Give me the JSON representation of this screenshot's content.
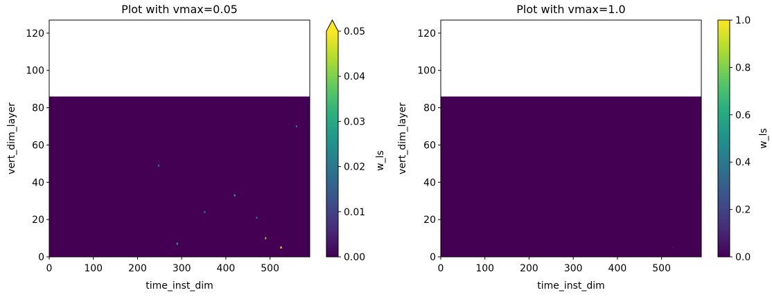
{
  "chart_data": [
    {
      "type": "heatmap",
      "title": "Plot with vmax=0.05",
      "xlabel": "time_inst_dim",
      "ylabel": "vert_dim_layer",
      "xlim": [
        0,
        590
      ],
      "ylim": [
        0,
        127
      ],
      "xticks": [
        0,
        100,
        200,
        300,
        400,
        500
      ],
      "yticks": [
        0,
        20,
        40,
        60,
        80,
        100,
        120
      ],
      "data_extent": {
        "x": [
          0,
          590
        ],
        "y": [
          0,
          86
        ]
      },
      "colormap": "viridis",
      "vmin": 0.0,
      "vmax": 0.05,
      "colorbar": {
        "label": "w_ls",
        "ticks": [
          "0.00",
          "0.01",
          "0.02",
          "0.03",
          "0.04",
          "0.05"
        ],
        "extend": "max"
      },
      "background_value": 0.0,
      "notable_values": [
        {
          "x": 525,
          "y": 5,
          "value": 0.05
        },
        {
          "x": 490,
          "y": 10,
          "value": 0.04
        },
        {
          "x": 248,
          "y": 49,
          "value": 0.02
        },
        {
          "x": 420,
          "y": 33,
          "value": 0.03
        },
        {
          "x": 352,
          "y": 24,
          "value": 0.02
        },
        {
          "x": 290,
          "y": 7,
          "value": 0.03
        },
        {
          "x": 470,
          "y": 21,
          "value": 0.02
        },
        {
          "x": 560,
          "y": 70,
          "value": 0.02
        }
      ]
    },
    {
      "type": "heatmap",
      "title": "Plot with vmax=1.0",
      "xlabel": "time_inst_dim",
      "ylabel": "vert_dim_layer",
      "xlim": [
        0,
        590
      ],
      "ylim": [
        0,
        127
      ],
      "xticks": [
        0,
        100,
        200,
        300,
        400,
        500
      ],
      "yticks": [
        0,
        20,
        40,
        60,
        80,
        100,
        120
      ],
      "data_extent": {
        "x": [
          0,
          590
        ],
        "y": [
          0,
          86
        ]
      },
      "colormap": "viridis",
      "vmin": 0.0,
      "vmax": 1.0,
      "colorbar": {
        "label": "w_ls",
        "ticks": [
          "0.0",
          "0.2",
          "0.4",
          "0.6",
          "0.8",
          "1.0"
        ],
        "extend": "neither"
      },
      "background_value": 0.0,
      "notable_values": [
        {
          "x": 525,
          "y": 5,
          "value": 0.05
        }
      ]
    }
  ]
}
